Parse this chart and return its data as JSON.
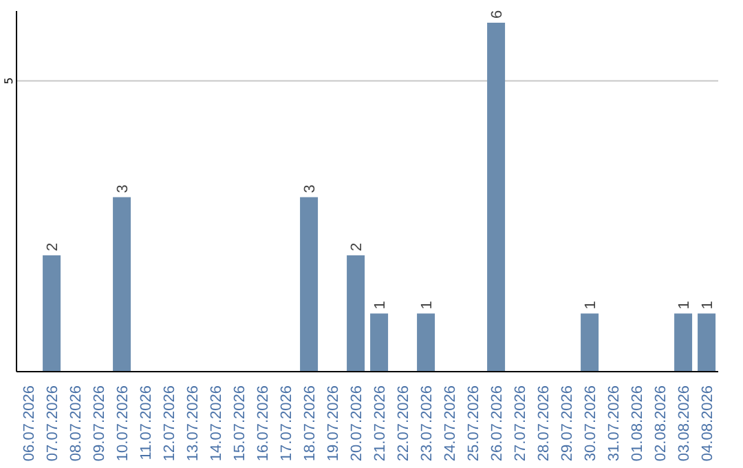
{
  "chart_data": {
    "type": "bar",
    "categories": [
      "06.07.2026",
      "07.07.2026",
      "08.07.2026",
      "09.07.2026",
      "10.07.2026",
      "11.07.2026",
      "12.07.2026",
      "13.07.2026",
      "14.07.2026",
      "15.07.2026",
      "16.07.2026",
      "17.07.2026",
      "18.07.2026",
      "19.07.2026",
      "20.07.2026",
      "21.07.2026",
      "22.07.2026",
      "23.07.2026",
      "24.07.2026",
      "25.07.2026",
      "26.07.2026",
      "27.07.2026",
      "28.07.2026",
      "29.07.2026",
      "30.07.2026",
      "31.07.2026",
      "01.08.2026",
      "02.08.2026",
      "03.08.2026",
      "04.08.2026"
    ],
    "values": [
      0,
      2,
      0,
      0,
      3,
      0,
      0,
      0,
      0,
      0,
      0,
      0,
      3,
      0,
      2,
      1,
      0,
      1,
      0,
      0,
      6,
      0,
      0,
      0,
      1,
      0,
      0,
      0,
      1,
      1
    ],
    "value_labels": [
      null,
      "2",
      null,
      null,
      "3",
      null,
      null,
      null,
      null,
      null,
      null,
      null,
      "3",
      null,
      "2",
      "1",
      null,
      "1",
      null,
      null,
      "6",
      null,
      null,
      null,
      "1",
      null,
      null,
      null,
      "1",
      "1"
    ],
    "color": "#6b8cae",
    "ylim": [
      0,
      6.2
    ],
    "yticks": [
      5
    ],
    "grid": "y"
  }
}
